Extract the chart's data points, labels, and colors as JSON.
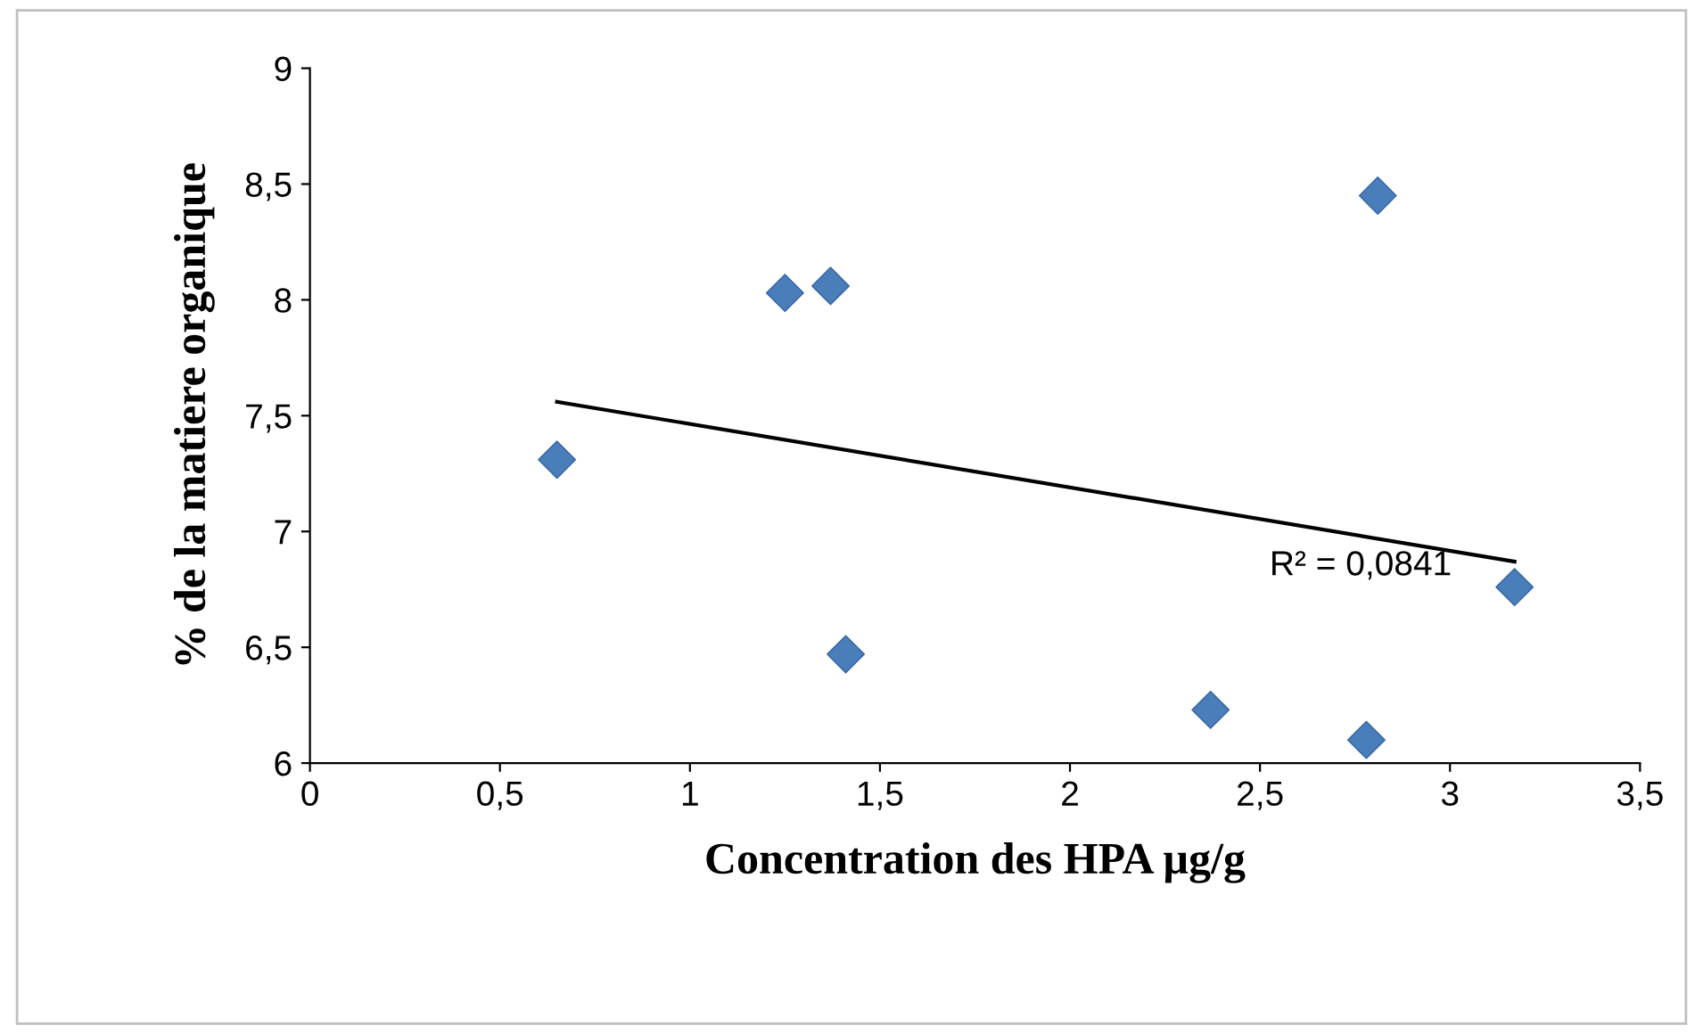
{
  "chart_data": {
    "type": "scatter",
    "xlabel": "Concentration des HPA µg/g",
    "ylabel": "% de la matiere organique",
    "series": [
      {
        "color": "#4a7ebb",
        "marker": "diamond",
        "x": [
          0.65,
          1.25,
          1.37,
          1.41,
          2.37,
          2.78,
          2.81,
          3.17
        ],
        "values": [
          7.31,
          8.03,
          8.06,
          6.47,
          6.23,
          6.1,
          8.45,
          6.76
        ]
      },
      {
        "type": "line",
        "color": "#000000",
        "marker": "none",
        "x": [
          0.65,
          3.17
        ],
        "values": [
          7.56,
          6.87
        ]
      }
    ],
    "annotations": [
      "R² = 0,0841"
    ],
    "xlim": [
      0,
      3.5
    ],
    "ylim": [
      6,
      9
    ],
    "xticks": [
      0,
      {
        "value": 0.5,
        "label": "0,5"
      },
      1,
      {
        "value": 1.5,
        "label": "1,5"
      },
      2,
      {
        "value": 2.5,
        "label": "2,5"
      },
      3,
      {
        "value": 3.5,
        "label": "3,5"
      }
    ],
    "yticks": [
      6,
      {
        "value": 6.5,
        "label": "6,5"
      },
      7,
      {
        "value": 7.5,
        "label": "7,5"
      },
      8,
      {
        "value": 8.5,
        "label": "8,5"
      },
      9
    ],
    "grid": false,
    "legend": false
  }
}
